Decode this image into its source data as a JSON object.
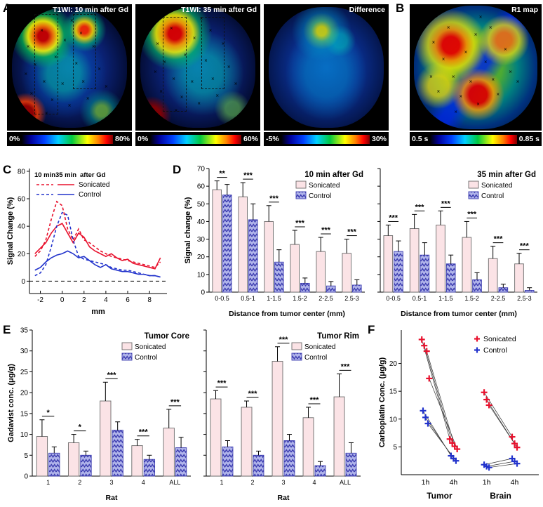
{
  "marker_glyph": "×",
  "colors": {
    "sonicated": "#fbe3e6",
    "sonicated_stroke": "#6a6a6a",
    "control_bg": "#b0b4ea",
    "control_hatch": "#3d3db0",
    "red": "#e8112d",
    "blue": "#2233cc",
    "axis": "#000000"
  },
  "panels": {
    "A": {
      "label": "A",
      "images": [
        {
          "title": "T1WI: 10 min after Gd",
          "cbar_left": "0%",
          "cbar_right": "80%"
        },
        {
          "title": "T1WI: 35 min after Gd",
          "cbar_left": "0%",
          "cbar_right": "60%"
        },
        {
          "title": "Difference",
          "cbar_left": "-5%",
          "cbar_right": "30%"
        }
      ]
    },
    "B": {
      "label": "B",
      "title": "R1 map",
      "cbar_left": "0.5 s",
      "cbar_right": "0.85 s"
    },
    "C": {
      "label": "C"
    },
    "D": {
      "label": "D"
    },
    "E": {
      "label": "E"
    },
    "F": {
      "label": "F"
    }
  },
  "chart_data": [
    {
      "id": "C",
      "type": "line",
      "xlabel": "mm",
      "ylabel": "Signal Change (%)",
      "xlim": [
        -3,
        9.6
      ],
      "ylim": [
        -9,
        82
      ],
      "xticks": [
        -2,
        0,
        2,
        4,
        6,
        8
      ],
      "yticks": [
        0,
        20,
        40,
        60,
        80
      ],
      "zero_line": true,
      "legend": {
        "header": [
          "10 min",
          "35 min",
          "after Gd"
        ],
        "rows": [
          "Sonicated",
          "Control"
        ]
      },
      "x": [
        -2.5,
        -2,
        -1.5,
        -1,
        -0.5,
        0,
        0.5,
        1,
        1.5,
        2,
        2.5,
        3,
        3.5,
        4,
        4.5,
        5,
        5.5,
        6,
        6.5,
        7,
        7.5,
        8,
        8.5,
        9
      ],
      "series": [
        {
          "name": "Sonicated 10 min",
          "color": "#e8112d",
          "dash": "4,3",
          "values": [
            18,
            22,
            30,
            45,
            58,
            55,
            38,
            30,
            38,
            30,
            28,
            25,
            22,
            20,
            18,
            17,
            16,
            15,
            14,
            13,
            12,
            11,
            10,
            14
          ]
        },
        {
          "name": "Sonicated 35 min",
          "color": "#e8112d",
          "dash": "",
          "values": [
            20,
            24,
            28,
            35,
            40,
            42,
            35,
            28,
            35,
            32,
            25,
            22,
            20,
            18,
            20,
            17,
            15,
            16,
            13,
            12,
            11,
            10,
            9,
            17
          ]
        },
        {
          "name": "Control 10 min",
          "color": "#2233cc",
          "dash": "4,3",
          "values": [
            4,
            6,
            12,
            25,
            40,
            50,
            48,
            30,
            18,
            16,
            15,
            14,
            13,
            12,
            10,
            9,
            8,
            8,
            7,
            6,
            5,
            4,
            4,
            3
          ]
        },
        {
          "name": "Control 35 min",
          "color": "#2233cc",
          "dash": "",
          "values": [
            8,
            10,
            14,
            17,
            19,
            20,
            22,
            20,
            17,
            18,
            15,
            12,
            10,
            12,
            9,
            8,
            7,
            7,
            6,
            5,
            5,
            4,
            4,
            3
          ]
        }
      ]
    },
    {
      "id": "D1",
      "type": "bar",
      "title": "10 min after Gd",
      "ylabel": "Signal change (%)",
      "xlabel": "Distance from tumor center (mm)",
      "categories": [
        "0-0.5",
        "0.5-1",
        "1-1.5",
        "1.5-2",
        "2-2.5",
        "2.5-3"
      ],
      "ylim": [
        0,
        70
      ],
      "yticks": [
        0,
        10,
        20,
        30,
        40,
        50,
        60,
        70
      ],
      "show_y_numbers": true,
      "series": [
        {
          "name": "Sonicated",
          "values": [
            58,
            54,
            40,
            27,
            23,
            22
          ],
          "errors": [
            5,
            8,
            9,
            8,
            8,
            8
          ]
        },
        {
          "name": "Control",
          "values": [
            55,
            41,
            17,
            5,
            3.5,
            4
          ],
          "errors": [
            6,
            9,
            7,
            3,
            2.5,
            3
          ]
        }
      ],
      "significance": [
        "**",
        "***",
        "***",
        "***",
        "***",
        "***"
      ]
    },
    {
      "id": "D2",
      "type": "bar",
      "title": "35 min after Gd",
      "ylabel": "",
      "xlabel": "Distance from tumor center (mm)",
      "categories": [
        "0-0.5",
        "0.5-1",
        "1-1.5",
        "1.5-2",
        "2-2.5",
        "2.5-3"
      ],
      "ylim": [
        0,
        70
      ],
      "yticks": [
        0,
        10,
        20,
        30,
        40,
        50,
        60,
        70
      ],
      "show_y_numbers": false,
      "series": [
        {
          "name": "Sonicated",
          "values": [
            32,
            36,
            38,
            31,
            19,
            16
          ],
          "errors": [
            6,
            8,
            8,
            9,
            7,
            6
          ]
        },
        {
          "name": "Control",
          "values": [
            23,
            21,
            16,
            7,
            2.5,
            1
          ],
          "errors": [
            6,
            7,
            5,
            4,
            2,
            1.5
          ]
        }
      ],
      "significance": [
        "***",
        "***",
        "***",
        "***",
        "***",
        "***"
      ]
    },
    {
      "id": "E1",
      "type": "bar",
      "title": "Tumor Core",
      "ylabel": "Gadavist conc. (μg/g)",
      "xlabel": "Rat",
      "categories": [
        "1",
        "2",
        "3",
        "4",
        "ALL"
      ],
      "ylim": [
        0,
        35
      ],
      "yticks": [
        0,
        5,
        10,
        15,
        20,
        25,
        30,
        35
      ],
      "show_y_numbers": true,
      "series": [
        {
          "name": "Sonicated",
          "values": [
            9.5,
            8,
            18,
            7.3,
            11.5
          ],
          "errors": [
            4,
            2,
            4.5,
            1.5,
            4.5
          ]
        },
        {
          "name": "Control",
          "values": [
            5.5,
            5,
            11,
            4,
            6.8
          ],
          "errors": [
            1.5,
            1,
            2,
            1,
            2.5
          ]
        }
      ],
      "significance": [
        "*",
        "*",
        "***",
        "***",
        "***"
      ]
    },
    {
      "id": "E2",
      "type": "bar",
      "title": "Tumor Rim",
      "ylabel": "",
      "xlabel": "Rat",
      "categories": [
        "1",
        "2",
        "3",
        "4",
        "ALL"
      ],
      "ylim": [
        0,
        35
      ],
      "yticks": [
        0,
        5,
        10,
        15,
        20,
        25,
        30,
        35
      ],
      "show_y_numbers": false,
      "series": [
        {
          "name": "Sonicated",
          "values": [
            18.5,
            16.5,
            27.5,
            14,
            19
          ],
          "errors": [
            2,
            1.5,
            3.5,
            2.5,
            5.5
          ]
        },
        {
          "name": "Control",
          "values": [
            7,
            5,
            8.5,
            2.5,
            5.5
          ],
          "errors": [
            1.5,
            1,
            1.5,
            1,
            2.5
          ]
        }
      ],
      "significance": [
        "***",
        "***",
        "***",
        "***",
        "***"
      ]
    },
    {
      "id": "F",
      "type": "scatter",
      "ylabel": "Carboplatin Conc. (μg/g)",
      "ylim": [
        0,
        26
      ],
      "yticks": [
        5,
        10,
        15,
        20
      ],
      "time_labels": [
        "1h",
        "4h",
        "1h",
        "4h"
      ],
      "group_labels": [
        "Tumor",
        "Brain"
      ],
      "legend": [
        "Sonicated",
        "Control"
      ],
      "series": [
        {
          "name": "Sonicated",
          "color": "#e8112d",
          "tumor": {
            "t1": [
              24.3,
              23.2,
              22.2,
              17.3
            ],
            "t4": [
              6.4,
              5.7,
              5.1,
              4.6
            ]
          },
          "brain": {
            "t1": [
              14.8,
              13.5,
              12.5
            ],
            "t4": [
              6.8,
              5.6,
              4.9
            ]
          }
        },
        {
          "name": "Control",
          "color": "#2233cc",
          "tumor": {
            "t1": [
              11.5,
              10.3,
              9.2
            ],
            "t4": [
              3.4,
              2.9,
              2.5
            ]
          },
          "brain": {
            "t1": [
              1.8,
              1.5,
              1.3
            ],
            "t4": [
              2.9,
              2.4,
              2.0
            ]
          }
        }
      ]
    }
  ]
}
